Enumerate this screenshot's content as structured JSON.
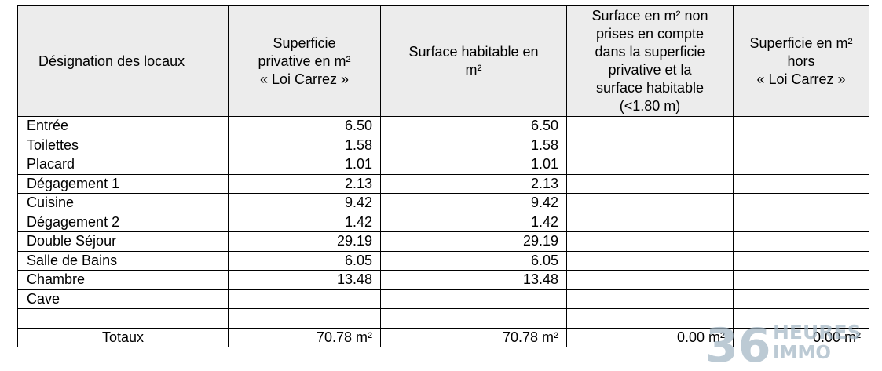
{
  "table": {
    "headers": [
      [
        "Désignation des locaux"
      ],
      [
        "Superficie",
        "privative en m²",
        "« Loi Carrez »"
      ],
      [
        "Surface habitable en",
        "m²"
      ],
      [
        "Surface en m² non",
        "prises en compte",
        "dans la superficie",
        "privative et la",
        "surface habitable",
        "(<1.80 m)"
      ],
      [
        "Superficie en m²",
        "hors",
        "« Loi Carrez »"
      ]
    ],
    "rows": [
      {
        "name": "Entrée",
        "carrez": "6.50",
        "habitable": "6.50",
        "non_prises": "",
        "hors_carrez": ""
      },
      {
        "name": "Toilettes",
        "carrez": "1.58",
        "habitable": "1.58",
        "non_prises": "",
        "hors_carrez": ""
      },
      {
        "name": "Placard",
        "carrez": "1.01",
        "habitable": "1.01",
        "non_prises": "",
        "hors_carrez": ""
      },
      {
        "name": "Dégagement 1",
        "carrez": "2.13",
        "habitable": "2.13",
        "non_prises": "",
        "hors_carrez": ""
      },
      {
        "name": "Cuisine",
        "carrez": "9.42",
        "habitable": "9.42",
        "non_prises": "",
        "hors_carrez": ""
      },
      {
        "name": "Dégagement 2",
        "carrez": "1.42",
        "habitable": "1.42",
        "non_prises": "",
        "hors_carrez": ""
      },
      {
        "name": "Double Séjour",
        "carrez": "29.19",
        "habitable": "29.19",
        "non_prises": "",
        "hors_carrez": ""
      },
      {
        "name": "Salle de Bains",
        "carrez": "6.05",
        "habitable": "6.05",
        "non_prises": "",
        "hors_carrez": ""
      },
      {
        "name": "Chambre",
        "carrez": "13.48",
        "habitable": "13.48",
        "non_prises": "",
        "hors_carrez": ""
      },
      {
        "name": "Cave",
        "carrez": "",
        "habitable": "",
        "non_prises": "",
        "hors_carrez": ""
      },
      {
        "name": "",
        "carrez": "",
        "habitable": "",
        "non_prises": "",
        "hors_carrez": ""
      }
    ],
    "totals": {
      "name": "Totaux",
      "carrez": "70.78 m²",
      "habitable": "70.78 m²",
      "non_prises": "0.00 m²",
      "hors_carrez": "0.00 m²"
    }
  },
  "watermark": {
    "number": "36",
    "line1": "HEURES",
    "line2": "IMMO",
    "color": "#9fb3c2"
  }
}
